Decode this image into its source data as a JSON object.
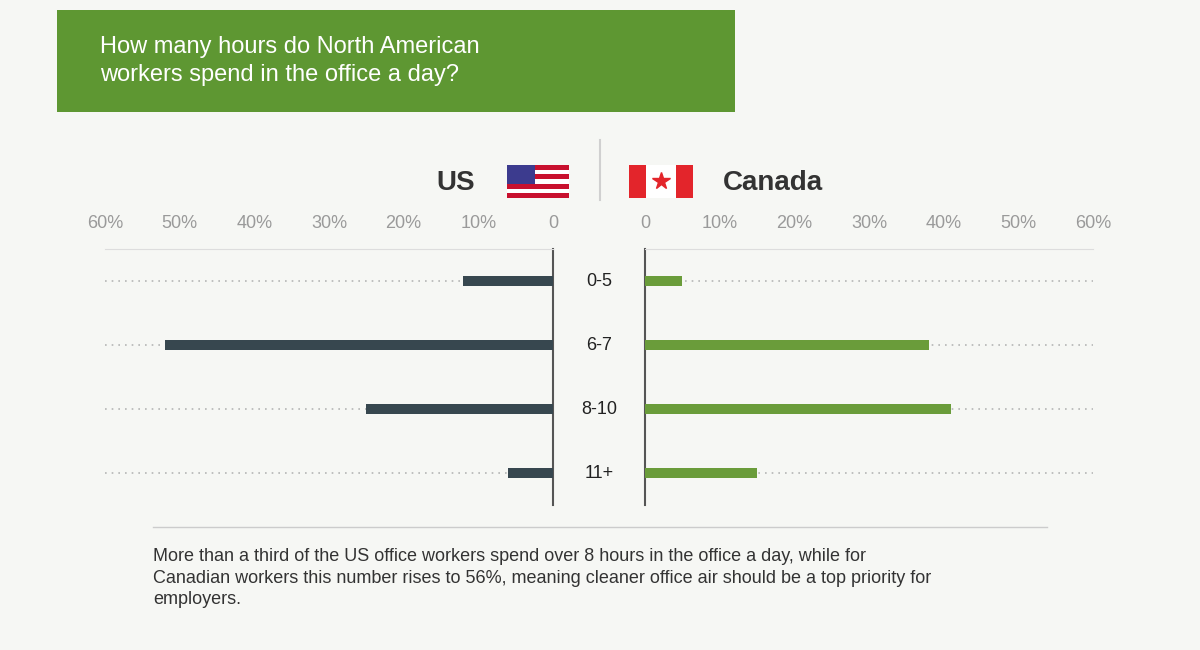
{
  "chart_data": {
    "type": "bar",
    "orientation": "horizontal",
    "title": "How many hours do North American workers spend in the office a day?",
    "categories": [
      "0-5",
      "6-7",
      "8-10",
      "11+"
    ],
    "series": [
      {
        "name": "US",
        "color": "#37474f",
        "values": [
          12,
          52,
          25,
          6
        ]
      },
      {
        "name": "Canada",
        "color": "#6a9c3a",
        "values": [
          5,
          38,
          41,
          15
        ]
      }
    ],
    "xlim": [
      0,
      60
    ],
    "xticks": [
      0,
      {
        "value": 10,
        "label": "10%"
      },
      {
        "value": 20,
        "label": "20%"
      },
      {
        "value": 30,
        "label": "30%"
      },
      {
        "value": 40,
        "label": "40%"
      },
      {
        "value": 50,
        "label": "50%"
      },
      {
        "value": 60,
        "label": "60%"
      }
    ],
    "annotation": "More than a third of the US office workers spend over 8 hours in the office a day, while for Canadian workers this number rises to 56%, meaning cleaner office air should be a top priority for employers."
  }
}
